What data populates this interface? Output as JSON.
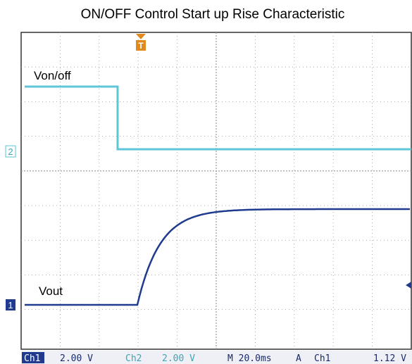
{
  "title": "ON/OFF Control Start up Rise Characteristic",
  "traces": [
    {
      "label": "Von/off",
      "marker": "2"
    },
    {
      "label": "Vout",
      "marker": "1"
    }
  ],
  "trigger_marker": "T",
  "status_bar": {
    "ch1": "Ch1",
    "ch1_scale": "2.00 V",
    "ch2": "Ch2",
    "ch2_scale": "2.00 V",
    "timebase": "M 20.0ms",
    "trigger_mode": "A",
    "trigger_source": "Ch1",
    "trigger_level": "1.12 V"
  }
}
